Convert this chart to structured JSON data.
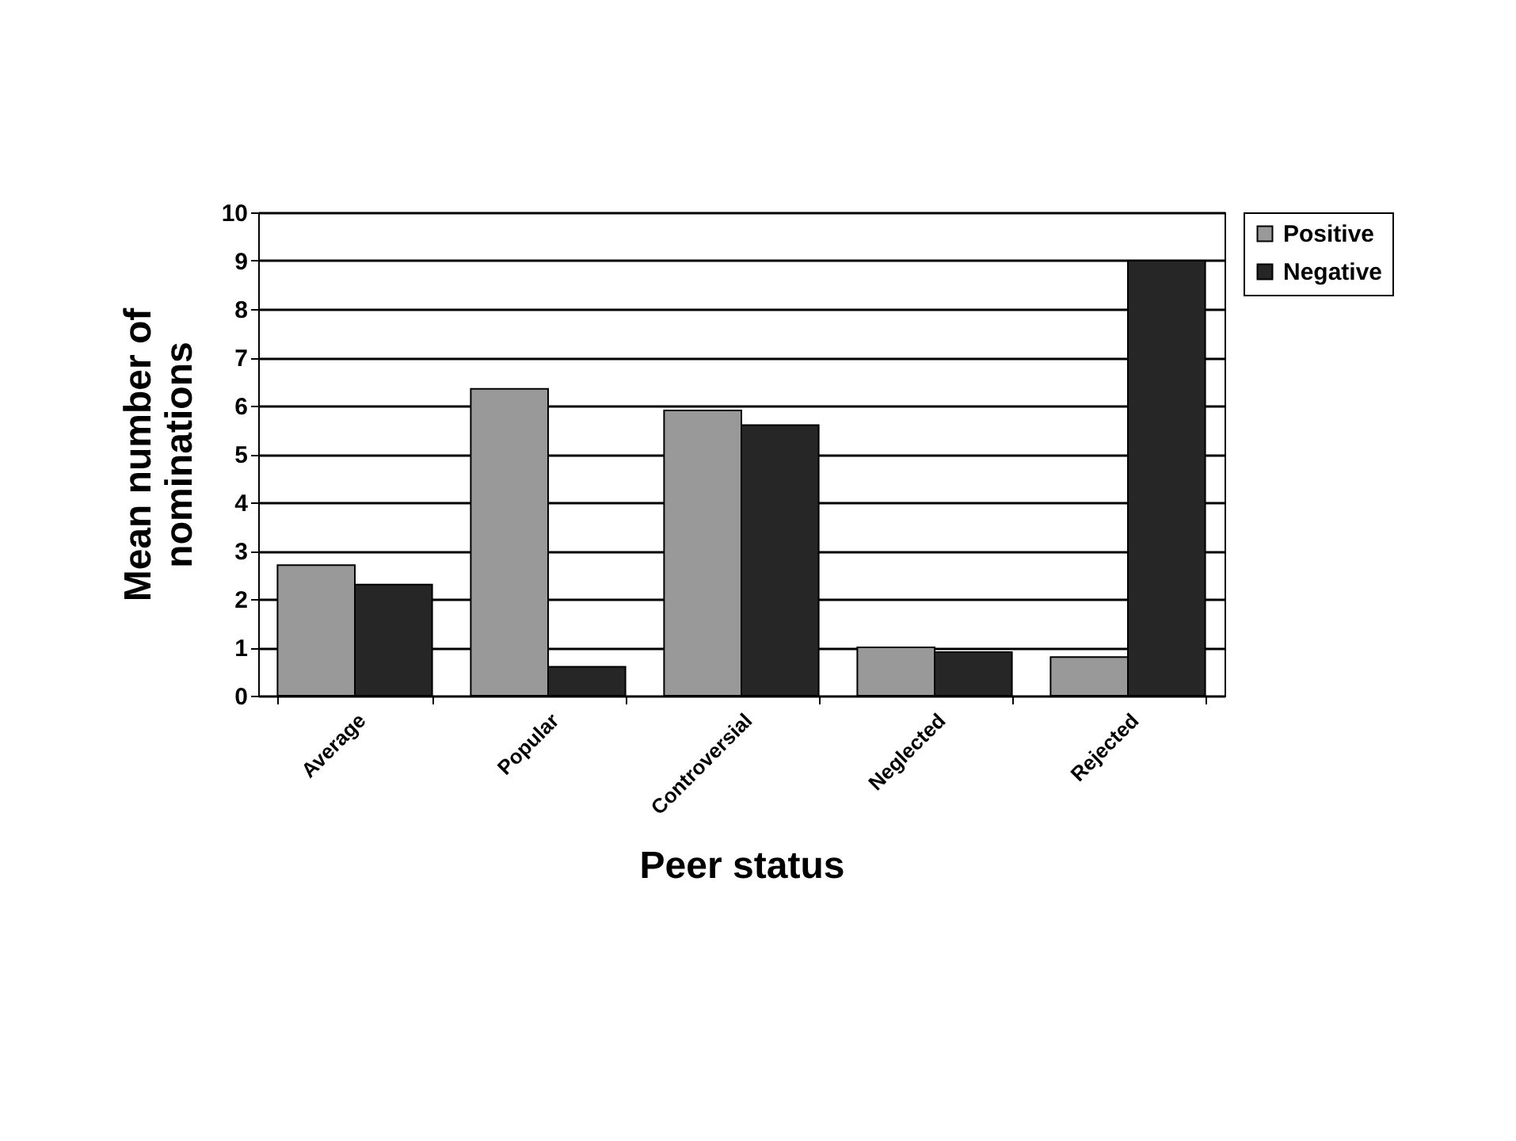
{
  "chart_data": {
    "type": "bar",
    "xlabel": "Peer status",
    "ylabel": "Mean number of nominations",
    "categories": [
      "Average",
      "Popular",
      "Controversial",
      "Neglected",
      "Rejected"
    ],
    "series": [
      {
        "name": "Positive",
        "color": "#999999",
        "values": [
          2.7,
          6.35,
          5.9,
          1.0,
          0.8
        ]
      },
      {
        "name": "Negative",
        "color": "#262626",
        "values": [
          2.3,
          0.6,
          5.6,
          0.9,
          9.0
        ]
      }
    ],
    "ylim": [
      0,
      10
    ],
    "yticks": [
      0,
      1,
      2,
      3,
      4,
      5,
      6,
      7,
      8,
      9,
      10
    ],
    "grid": "y",
    "legend": "right"
  }
}
